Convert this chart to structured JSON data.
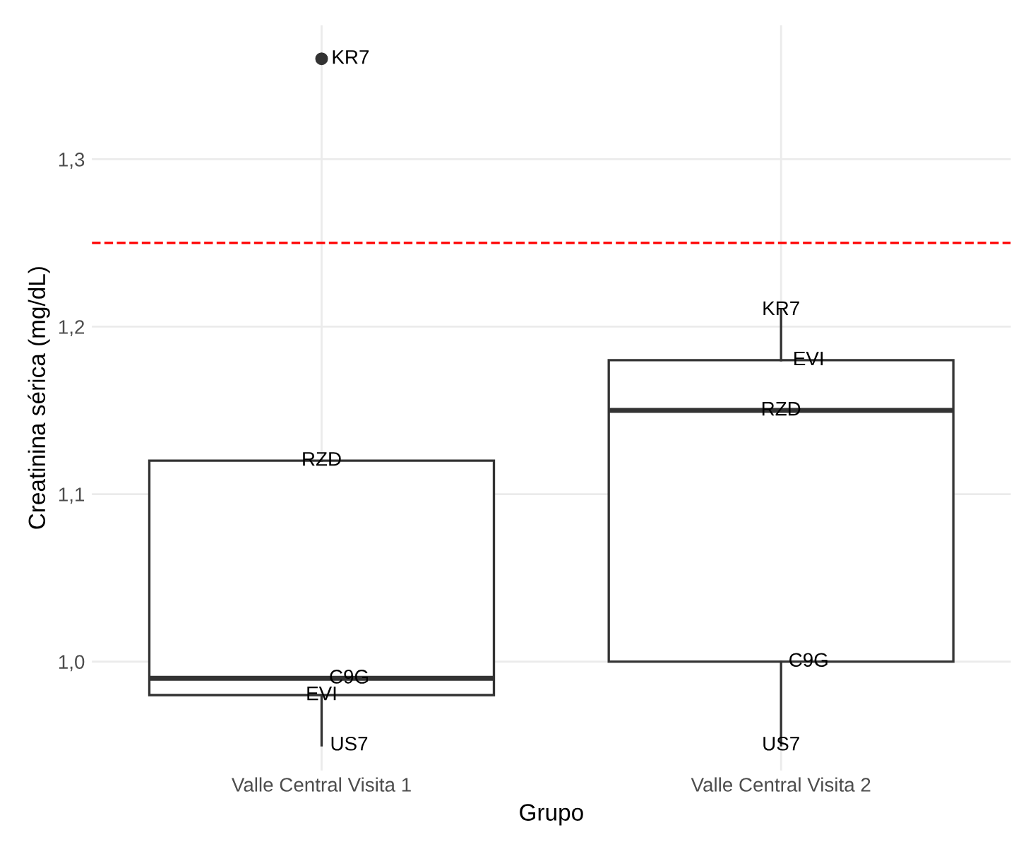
{
  "chart_data": {
    "type": "box",
    "xlabel": "Grupo",
    "ylabel": "Creatinina sérica (mg/dL)",
    "categories": [
      "Valle Central Visita 1",
      "Valle Central Visita 2"
    ],
    "boxes": [
      {
        "low": 0.95,
        "q1": 0.98,
        "median": 0.99,
        "q3": 1.12,
        "high": 1.12
      },
      {
        "low": 0.95,
        "q1": 1.0,
        "median": 1.15,
        "q3": 1.18,
        "high": 1.21
      }
    ],
    "color": "#333333",
    "series": [
      {
        "type": "scatter",
        "x": [
          "Valle Central Visita 1"
        ],
        "values": [
          1.36
        ],
        "color": "#333333"
      }
    ],
    "ylim": [
      0.935,
      1.38
    ],
    "yticks": [
      {
        "value": 1.0,
        "label": "1,0"
      },
      {
        "value": 1.1,
        "label": "1,1"
      },
      {
        "value": 1.2,
        "label": "1,2"
      },
      {
        "value": 1.3,
        "label": "1,3"
      }
    ],
    "ref_lines": [
      {
        "axis": "y",
        "value": 1.25,
        "color": "#ff0000",
        "line_style": "dashed"
      }
    ],
    "annotations": [
      {
        "text": "KR7",
        "x": "Valle Central Visita 1",
        "y": 1.36
      },
      {
        "text": "RZD",
        "x": "Valle Central Visita 1",
        "y": 1.12
      },
      {
        "text": "C9G",
        "x": "Valle Central Visita 1",
        "y": 0.99
      },
      {
        "text": "EVI",
        "x": "Valle Central Visita 1",
        "y": 0.98
      },
      {
        "text": "US7",
        "x": "Valle Central Visita 1",
        "y": 0.95
      },
      {
        "text": "KR7",
        "x": "Valle Central Visita 2",
        "y": 1.21
      },
      {
        "text": "EVI",
        "x": "Valle Central Visita 2",
        "y": 1.18
      },
      {
        "text": "RZD",
        "x": "Valle Central Visita 2",
        "y": 1.15
      },
      {
        "text": "C9G",
        "x": "Valle Central Visita 2",
        "y": 1.0
      },
      {
        "text": "US7",
        "x": "Valle Central Visita 2",
        "y": 0.95
      }
    ],
    "grid": true
  }
}
